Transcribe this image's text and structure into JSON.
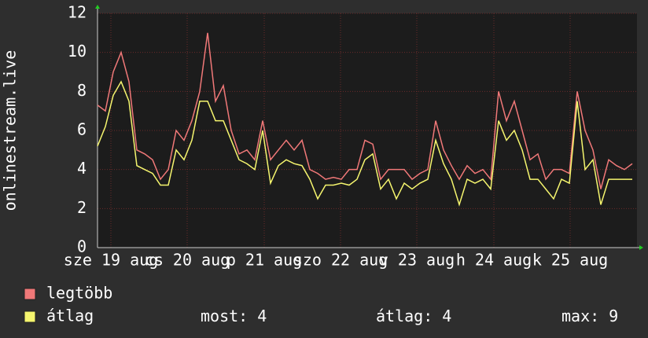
{
  "chart_data": {
    "type": "line",
    "ylabel": "onlinestream.live",
    "x": [
      0,
      1,
      2,
      3,
      4,
      5,
      6,
      7,
      8,
      9,
      10,
      11,
      12,
      13,
      14,
      15,
      16,
      17,
      18,
      19,
      20,
      21,
      22,
      23,
      24,
      25,
      26,
      27,
      28,
      29,
      30,
      31,
      32,
      33,
      34,
      35,
      36,
      37,
      38,
      39,
      40,
      41,
      42,
      43,
      44,
      45,
      46,
      47,
      48,
      49,
      50,
      51,
      52,
      53,
      54,
      55,
      56,
      57,
      58,
      59,
      60,
      61,
      62,
      63,
      64,
      65,
      66,
      67,
      68
    ],
    "xlim": [
      0,
      68.6
    ],
    "xticks": [
      {
        "value": 1.7,
        "label": "sze 19 aug"
      },
      {
        "value": 11.4,
        "label": "cs 20 aug"
      },
      {
        "value": 21.2,
        "label": "p 21 aug"
      },
      {
        "value": 30.9,
        "label": "szo 22 aug"
      },
      {
        "value": 40.6,
        "label": "v 23 aug"
      },
      {
        "value": 50.4,
        "label": "h 24 aug"
      },
      {
        "value": 60.1,
        "label": "k 25 aug"
      }
    ],
    "ylim": [
      0,
      12
    ],
    "yticks": [
      0,
      2,
      4,
      6,
      8,
      10,
      12
    ],
    "grid": true,
    "series": [
      {
        "name": "legtöbb",
        "color": "#f07878",
        "values": [
          7.3,
          7,
          9,
          10,
          8.5,
          5,
          4.8,
          4.5,
          3.5,
          4,
          6,
          5.5,
          6.5,
          8,
          11,
          7.5,
          8.3,
          6,
          4.8,
          5,
          4.5,
          6.5,
          4.5,
          5,
          5.5,
          5,
          5.5,
          4,
          3.8,
          3.5,
          3.6,
          3.5,
          4,
          4,
          5.5,
          5.3,
          3.5,
          4,
          4,
          4,
          3.5,
          3.8,
          4,
          6.5,
          5,
          4.2,
          3.5,
          4.2,
          3.8,
          4,
          3.5,
          8,
          6.5,
          7.5,
          6,
          4.5,
          4.8,
          3.5,
          4,
          4,
          3.8,
          8,
          6,
          5,
          3,
          4.5,
          4.2,
          4,
          4.3
        ]
      },
      {
        "name": "átlag",
        "color": "#f5f56e",
        "values": [
          5.2,
          6.2,
          7.8,
          8.5,
          7.5,
          4.2,
          4,
          3.8,
          3.2,
          3.2,
          5,
          4.5,
          5.5,
          7.5,
          7.5,
          6.5,
          6.5,
          5.5,
          4.5,
          4.3,
          4,
          6,
          3.3,
          4.2,
          4.5,
          4.3,
          4.2,
          3.5,
          2.5,
          3.2,
          3.2,
          3.3,
          3.2,
          3.5,
          4.5,
          4.8,
          3,
          3.5,
          2.5,
          3.3,
          3,
          3.3,
          3.5,
          5.5,
          4.3,
          3.5,
          2.2,
          3.5,
          3.3,
          3.5,
          3,
          6.5,
          5.5,
          6,
          5,
          3.5,
          3.5,
          3,
          2.5,
          3.5,
          3.3,
          7.5,
          4,
          4.5,
          2.2,
          3.5,
          3.5,
          3.5,
          3.5
        ]
      }
    ],
    "stats": [
      {
        "label": "most:",
        "value": 4
      },
      {
        "label": "átlag:",
        "value": 4
      },
      {
        "label": "max:",
        "value": 9
      }
    ]
  }
}
